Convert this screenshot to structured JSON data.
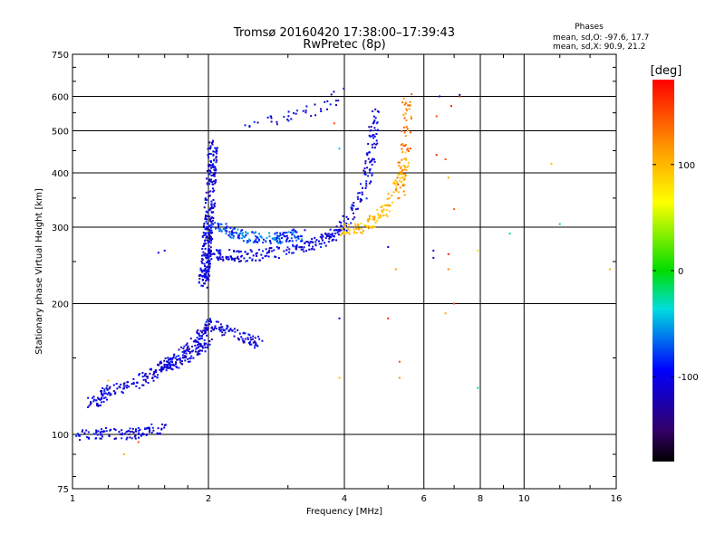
{
  "chart_data": {
    "type": "scatter",
    "title": "Tromsø 20160420 17:38:00–17:39:43",
    "subtitle": "RwPretec (8p)",
    "stats": {
      "heading": "Phases",
      "line_o": "mean, sd,O: -97.6, 17.7",
      "line_x": "mean, sd,X:  90.9, 21.2"
    },
    "xlabel": "Frequency [MHz]",
    "ylabel": "Stationary phase Virtual Height [km]",
    "x_scale": "log",
    "y_scale": "log",
    "xlim": [
      1,
      16
    ],
    "ylim": [
      75,
      750
    ],
    "x_ticks": [
      1,
      2,
      4,
      6,
      8,
      10,
      16
    ],
    "x_tick_labels": [
      "1",
      "2",
      "4",
      "6",
      "8",
      "10",
      "16"
    ],
    "y_ticks": [
      75,
      100,
      200,
      300,
      400,
      500,
      600,
      750
    ],
    "y_tick_labels": [
      "75",
      "100",
      "200",
      "300",
      "400",
      "500",
      "600",
      "750"
    ],
    "grid": true,
    "colorbar": {
      "label": "[deg]",
      "range": [
        -180,
        180
      ],
      "ticks": [
        100,
        0,
        -100
      ],
      "tick_labels": [
        "100",
        "0",
        "-100"
      ]
    },
    "traces": [
      {
        "x": [
          1.0,
          1.1,
          1.2,
          1.3,
          1.4,
          1.5,
          1.6
        ],
        "y": [
          100,
          99,
          101,
          100,
          101,
          103,
          104
        ],
        "phase": -100,
        "count": 110
      },
      {
        "x": [
          1.1,
          1.2,
          1.4,
          1.6,
          1.8,
          2.0
        ],
        "y": [
          118,
          125,
          132,
          142,
          150,
          162
        ],
        "phase": -100,
        "count": 210
      },
      {
        "x": [
          1.5,
          1.7,
          1.9,
          2.0,
          2.3,
          2.6
        ],
        "y": [
          140,
          150,
          165,
          180,
          170,
          162
        ],
        "phase": -100,
        "count": 200
      },
      {
        "x": [
          1.95,
          2.0,
          2.05
        ],
        "y": [
          220,
          300,
          470
        ],
        "phase": -100,
        "count": 300
      },
      {
        "x": [
          2.0,
          2.4,
          3.0,
          3.6,
          4.0
        ],
        "y": [
          260,
          257,
          264,
          280,
          300
        ],
        "phase": -100,
        "count": 220
      },
      {
        "x": [
          2.1,
          2.4,
          2.8,
          3.2
        ],
        "y": [
          300,
          285,
          282,
          290
        ],
        "phase": -75,
        "count": 160
      },
      {
        "x": [
          4.0,
          4.4,
          4.6,
          4.7
        ],
        "y": [
          300,
          360,
          450,
          560
        ],
        "phase": -100,
        "count": 110
      },
      {
        "x": [
          4.0,
          4.4,
          4.8,
          5.2,
          5.5
        ],
        "y": [
          295,
          300,
          320,
          360,
          440
        ],
        "phase": 100,
        "count": 130
      },
      {
        "x": [
          5.3,
          5.4,
          5.5,
          5.5
        ],
        "y": [
          350,
          420,
          500,
          600
        ],
        "phase": 130,
        "count": 60
      },
      {
        "x": [
          2.4,
          3.0,
          3.5,
          4.0
        ],
        "y": [
          520,
          540,
          560,
          610
        ],
        "phase": -100,
        "count": 40
      }
    ],
    "points": [
      {
        "x": 1.6,
        "y": 265,
        "phase": -100
      },
      {
        "x": 1.55,
        "y": 262,
        "phase": -100
      },
      {
        "x": 1.3,
        "y": 90,
        "phase": 110
      },
      {
        "x": 1.4,
        "y": 96,
        "phase": 150
      },
      {
        "x": 1.2,
        "y": 133,
        "phase": 100
      },
      {
        "x": 3.9,
        "y": 135,
        "phase": 100
      },
      {
        "x": 3.9,
        "y": 185,
        "phase": -100
      },
      {
        "x": 3.9,
        "y": 455,
        "phase": -50
      },
      {
        "x": 3.8,
        "y": 520,
        "phase": 150
      },
      {
        "x": 5.0,
        "y": 270,
        "phase": -100
      },
      {
        "x": 5.0,
        "y": 185,
        "phase": 170
      },
      {
        "x": 5.3,
        "y": 135,
        "phase": 120
      },
      {
        "x": 5.3,
        "y": 147,
        "phase": 150
      },
      {
        "x": 5.2,
        "y": 240,
        "phase": 120
      },
      {
        "x": 5.6,
        "y": 455,
        "phase": 160
      },
      {
        "x": 6.3,
        "y": 265,
        "phase": -100
      },
      {
        "x": 6.3,
        "y": 255,
        "phase": -100
      },
      {
        "x": 6.4,
        "y": 540,
        "phase": 150
      },
      {
        "x": 6.5,
        "y": 600,
        "phase": -100
      },
      {
        "x": 6.4,
        "y": 440,
        "phase": 170
      },
      {
        "x": 6.7,
        "y": 430,
        "phase": 150
      },
      {
        "x": 6.8,
        "y": 390,
        "phase": 110
      },
      {
        "x": 6.8,
        "y": 260,
        "phase": 170
      },
      {
        "x": 6.8,
        "y": 240,
        "phase": 130
      },
      {
        "x": 6.9,
        "y": 570,
        "phase": 170
      },
      {
        "x": 6.7,
        "y": 190,
        "phase": 110
      },
      {
        "x": 7.0,
        "y": 330,
        "phase": 140
      },
      {
        "x": 7.0,
        "y": 200,
        "phase": 150
      },
      {
        "x": 7.2,
        "y": 605,
        "phase": -100
      },
      {
        "x": 7.2,
        "y": 600,
        "phase": 170
      },
      {
        "x": 7.9,
        "y": 265,
        "phase": 80
      },
      {
        "x": 7.9,
        "y": 128,
        "phase": -30
      },
      {
        "x": 9.3,
        "y": 290,
        "phase": -30
      },
      {
        "x": 11.5,
        "y": 420,
        "phase": 100
      },
      {
        "x": 12.0,
        "y": 305,
        "phase": -20
      },
      {
        "x": 15.5,
        "y": 240,
        "phase": 110
      }
    ]
  }
}
